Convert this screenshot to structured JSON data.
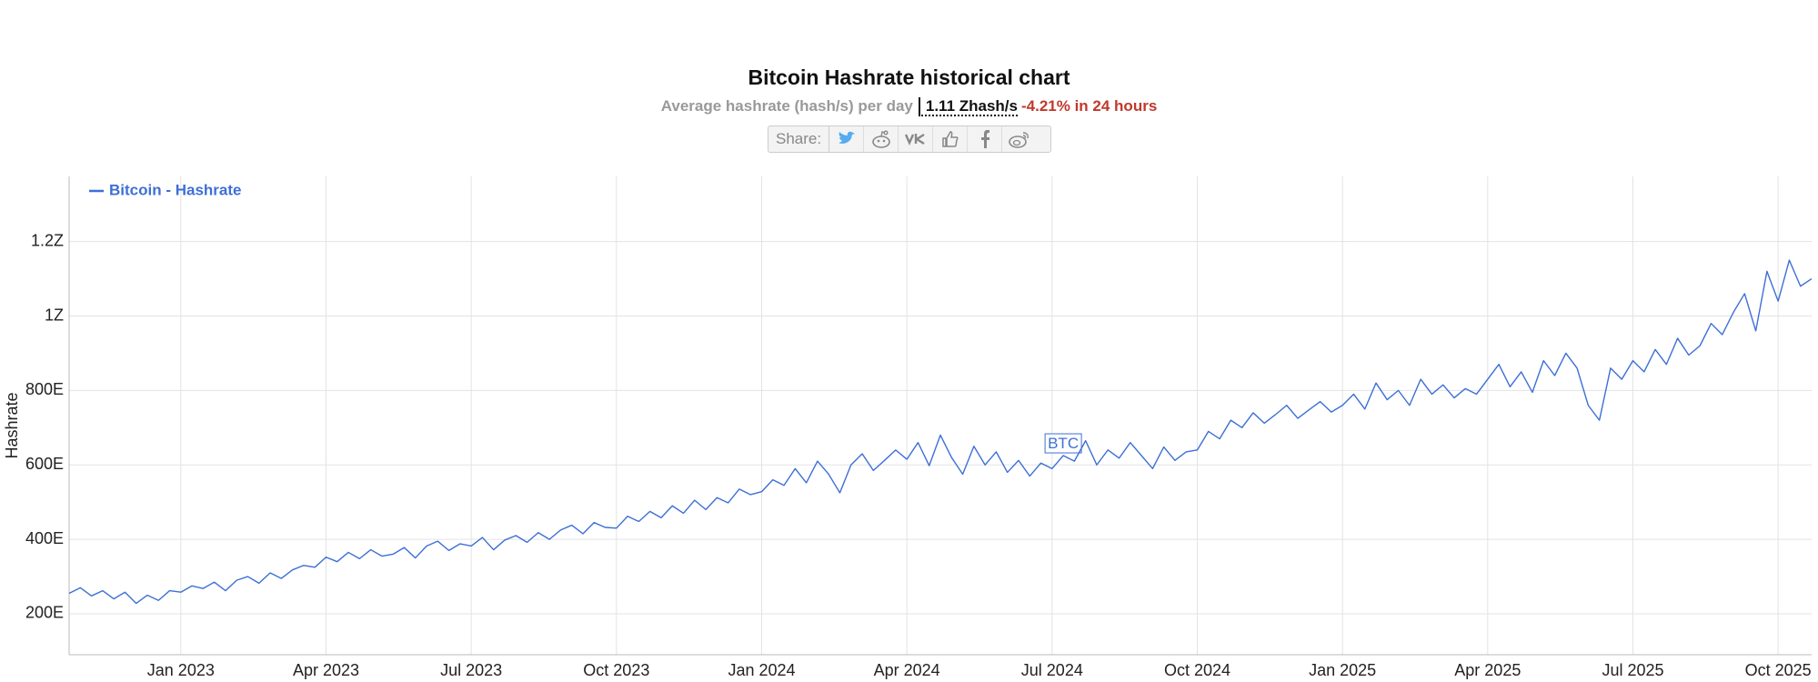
{
  "chart_data": {
    "type": "line",
    "title": "Bitcoin Hashrate historical chart",
    "subtitle": "Average hashrate (hash/s) per day",
    "current_value": "1.11 Zhash/s",
    "change": "-4.21% in 24 hours",
    "share_label": "Share:",
    "watermark": "BTC",
    "y_label": "Hashrate",
    "legend": "top-left",
    "grid": true,
    "ylim": [
      90,
      1375
    ],
    "yticks": [
      {
        "value": 200,
        "label": "200E"
      },
      {
        "value": 400,
        "label": "400E"
      },
      {
        "value": 600,
        "label": "600E"
      },
      {
        "value": 800,
        "label": "800E"
      },
      {
        "value": 1000,
        "label": "1Z"
      },
      {
        "value": 1200,
        "label": "1.2Z"
      }
    ],
    "categories": [
      null,
      null,
      null,
      null,
      null,
      null,
      null,
      null,
      null,
      null,
      "Jan 2023",
      null,
      null,
      null,
      null,
      null,
      null,
      null,
      null,
      null,
      null,
      null,
      null,
      "Apr 2023",
      null,
      null,
      null,
      null,
      null,
      null,
      null,
      null,
      null,
      null,
      null,
      null,
      "Jul 2023",
      null,
      null,
      null,
      null,
      null,
      null,
      null,
      null,
      null,
      null,
      null,
      null,
      "Oct 2023",
      null,
      null,
      null,
      null,
      null,
      null,
      null,
      null,
      null,
      null,
      null,
      null,
      "Jan 2024",
      null,
      null,
      null,
      null,
      null,
      null,
      null,
      null,
      null,
      null,
      null,
      null,
      "Apr 2024",
      null,
      null,
      null,
      null,
      null,
      null,
      null,
      null,
      null,
      null,
      null,
      null,
      "Jul 2024",
      null,
      null,
      null,
      null,
      null,
      null,
      null,
      null,
      null,
      null,
      null,
      null,
      "Oct 2024",
      null,
      null,
      null,
      null,
      null,
      null,
      null,
      null,
      null,
      null,
      null,
      null,
      "Jan 2025",
      null,
      null,
      null,
      null,
      null,
      null,
      null,
      null,
      null,
      null,
      null,
      null,
      "Apr 2025",
      null,
      null,
      null,
      null,
      null,
      null,
      null,
      null,
      null,
      null,
      null,
      null,
      "Jul 2025",
      null,
      null,
      null,
      null,
      null,
      null,
      null,
      null,
      null,
      null,
      null,
      null,
      "Oct 2025",
      null,
      null,
      null
    ],
    "series": [
      {
        "name": "Bitcoin - Hashrate",
        "color": "#3d6fd6",
        "values": [
          255,
          270,
          248,
          262,
          240,
          258,
          228,
          250,
          236,
          262,
          258,
          275,
          268,
          285,
          262,
          290,
          300,
          282,
          310,
          295,
          318,
          330,
          325,
          352,
          340,
          365,
          348,
          372,
          355,
          360,
          378,
          350,
          382,
          395,
          370,
          388,
          382,
          405,
          372,
          398,
          410,
          392,
          418,
          400,
          425,
          438,
          415,
          445,
          432,
          430,
          462,
          448,
          475,
          458,
          490,
          470,
          505,
          480,
          512,
          498,
          535,
          520,
          528,
          560,
          545,
          590,
          552,
          610,
          575,
          525,
          600,
          630,
          585,
          612,
          640,
          615,
          660,
          598,
          680,
          620,
          575,
          650,
          600,
          635,
          580,
          612,
          570,
          605,
          590,
          625,
          610,
          665,
          600,
          640,
          618,
          660,
          625,
          590,
          648,
          612,
          635,
          640,
          690,
          670,
          720,
          700,
          740,
          712,
          735,
          760,
          725,
          748,
          770,
          742,
          760,
          790,
          750,
          820,
          775,
          800,
          760,
          830,
          790,
          815,
          780,
          805,
          790,
          830,
          870,
          810,
          850,
          795,
          880,
          840,
          900,
          860,
          760,
          720,
          860,
          830,
          880,
          850,
          910,
          870,
          940,
          895,
          920,
          980,
          950,
          1010,
          1060,
          960,
          1120,
          1040,
          1150,
          1080,
          1100
        ]
      }
    ]
  }
}
